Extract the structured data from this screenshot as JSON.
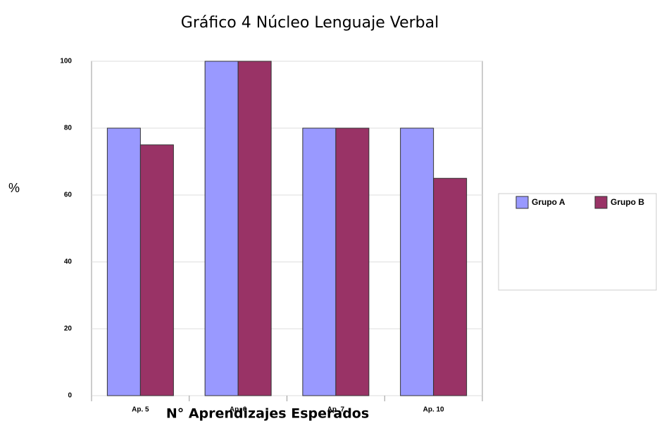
{
  "chart_data": {
    "type": "bar",
    "title": "Gráfico 4 Núcleo Lenguaje Verbal",
    "x_label": "N° Aprendizajes Esperados",
    "y_label": "%",
    "categories": [
      "Ap. 5",
      "Ap. 6",
      "Ap. 7",
      "Ap. 10"
    ],
    "series": [
      {
        "name": "Grupo A",
        "color": "#9999ff",
        "values": [
          80,
          100,
          80,
          80
        ]
      },
      {
        "name": "Grupo B",
        "color": "#993366",
        "values": [
          75,
          100,
          80,
          65
        ]
      }
    ],
    "ylim": [
      0,
      100
    ],
    "yticks": [
      0,
      20,
      40,
      60,
      80,
      100
    ],
    "grid": true,
    "legend": "right"
  }
}
